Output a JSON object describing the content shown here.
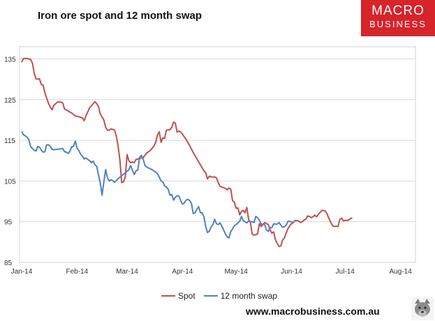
{
  "header": {
    "title": "Iron ore spot and 12 month swap",
    "logo_top": "MACRO",
    "logo_bottom": "BUSINESS"
  },
  "footer": {
    "website": "www.macrobusiness.com.au"
  },
  "colors": {
    "spot": "#c0504d",
    "swap": "#4f81bd",
    "brand_red": "#d7232a",
    "grid": "#d9d9d9"
  },
  "chart_data": {
    "type": "line",
    "title": "Iron ore spot and 12 month swap",
    "xlabel": "",
    "ylabel": "",
    "ylim": [
      85,
      138
    ],
    "yticks": [
      85,
      95,
      105,
      115,
      125,
      135
    ],
    "xlim": [
      0,
      218
    ],
    "xticks": [
      {
        "label": "Jan-14",
        "x": 0
      },
      {
        "label": "Feb-14",
        "x": 31
      },
      {
        "label": "Mar-14",
        "x": 59
      },
      {
        "label": "Apr-14",
        "x": 90
      },
      {
        "label": "May-14",
        "x": 120
      },
      {
        "label": "Jun-14",
        "x": 151
      },
      {
        "label": "Jul-14",
        "x": 181
      },
      {
        "label": "Aug-14",
        "x": 212
      }
    ],
    "legend": "bottom",
    "series": [
      {
        "name": "Spot",
        "color": "#c0504d",
        "points": [
          [
            0,
            134.2
          ],
          [
            1,
            135.1
          ],
          [
            3,
            135.1
          ],
          [
            5,
            134.9
          ],
          [
            6,
            134.0
          ],
          [
            7,
            131.6
          ],
          [
            8,
            130.1
          ],
          [
            10,
            130.1
          ],
          [
            11,
            128.7
          ],
          [
            12,
            128.6
          ],
          [
            13,
            126.7
          ],
          [
            15,
            124.1
          ],
          [
            16,
            123.2
          ],
          [
            17,
            122.5
          ],
          [
            18,
            123.6
          ],
          [
            20,
            124.4
          ],
          [
            22,
            124.4
          ],
          [
            23,
            124.2
          ],
          [
            24,
            122.7
          ],
          [
            26,
            122.2
          ],
          [
            28,
            121.7
          ],
          [
            30,
            121.0
          ],
          [
            32,
            120.8
          ],
          [
            34,
            120.5
          ],
          [
            35,
            119.8
          ],
          [
            36,
            121.0
          ],
          [
            38,
            123.0
          ],
          [
            40,
            124.0
          ],
          [
            41,
            124.5
          ],
          [
            42,
            124.0
          ],
          [
            43,
            123.3
          ],
          [
            44,
            121.5
          ],
          [
            46,
            120.0
          ],
          [
            47,
            118.2
          ],
          [
            48,
            117.5
          ],
          [
            49,
            117.5
          ],
          [
            50,
            117.8
          ],
          [
            51,
            117.7
          ],
          [
            52,
            117.5
          ],
          [
            53,
            116.0
          ],
          [
            54,
            113.5
          ],
          [
            55,
            110.0
          ],
          [
            56,
            104.6
          ],
          [
            57,
            104.8
          ],
          [
            58,
            106.0
          ],
          [
            59,
            111.5
          ],
          [
            60,
            110.0
          ],
          [
            61,
            109.5
          ],
          [
            62,
            109.7
          ],
          [
            63,
            109.5
          ],
          [
            64,
            110.3
          ],
          [
            66,
            110.5
          ],
          [
            68,
            110.8
          ],
          [
            70,
            111.9
          ],
          [
            72,
            112.5
          ],
          [
            74,
            113.6
          ],
          [
            75,
            114.5
          ],
          [
            76,
            116.3
          ],
          [
            77,
            117.1
          ],
          [
            78,
            114.5
          ],
          [
            79,
            115.6
          ],
          [
            80,
            115.5
          ],
          [
            81,
            117.5
          ],
          [
            83,
            117.6
          ],
          [
            84,
            118.2
          ],
          [
            85,
            119.5
          ],
          [
            86,
            119.2
          ],
          [
            87,
            117.0
          ],
          [
            88,
            117.3
          ],
          [
            89,
            117.0
          ],
          [
            90,
            116.5
          ],
          [
            92,
            115.2
          ],
          [
            94,
            113.7
          ],
          [
            96,
            112.0
          ],
          [
            98,
            110.5
          ],
          [
            100,
            109.0
          ],
          [
            102,
            107.5
          ],
          [
            103,
            107.0
          ],
          [
            104,
            105.5
          ],
          [
            105,
            106.2
          ],
          [
            106,
            106.0
          ],
          [
            108,
            106.0
          ],
          [
            109,
            105.8
          ],
          [
            110,
            104.6
          ],
          [
            111,
            103.7
          ],
          [
            112,
            103.5
          ],
          [
            114,
            103.2
          ],
          [
            115,
            102.8
          ],
          [
            116,
            103.3
          ],
          [
            117,
            103.0
          ],
          [
            118,
            100.2
          ],
          [
            119,
            99.8
          ],
          [
            120,
            98.3
          ],
          [
            121,
            98.4
          ],
          [
            122,
            96.7
          ],
          [
            123,
            97.5
          ],
          [
            124,
            97.8
          ],
          [
            125,
            97.2
          ],
          [
            126,
            98.5
          ],
          [
            127,
            95.5
          ],
          [
            128,
            94.8
          ],
          [
            129,
            92.0
          ],
          [
            130,
            91.7
          ],
          [
            131,
            91.8
          ],
          [
            132,
            92.0
          ],
          [
            133,
            94.5
          ],
          [
            134,
            93.8
          ],
          [
            136,
            94.8
          ],
          [
            138,
            94.3
          ],
          [
            139,
            93.0
          ],
          [
            140,
            92.2
          ],
          [
            141,
            92.5
          ],
          [
            142,
            90.5
          ],
          [
            143,
            89.7
          ],
          [
            144,
            88.9
          ],
          [
            145,
            89.0
          ],
          [
            146,
            90.5
          ],
          [
            147,
            91.0
          ],
          [
            148,
            92.2
          ],
          [
            149,
            93.3
          ],
          [
            150,
            94.0
          ],
          [
            151,
            94.5
          ],
          [
            152,
            94.8
          ],
          [
            153,
            95.3
          ],
          [
            155,
            95.2
          ],
          [
            156,
            94.8
          ],
          [
            157,
            95.0
          ],
          [
            158,
            95.4
          ],
          [
            159,
            95.6
          ],
          [
            160,
            96.4
          ],
          [
            161,
            96.3
          ],
          [
            162,
            96.0
          ],
          [
            163,
            96.2
          ],
          [
            164,
            96.6
          ],
          [
            165,
            96.2
          ],
          [
            166,
            96.8
          ],
          [
            167,
            97.3
          ],
          [
            168,
            97.8
          ],
          [
            170,
            97.6
          ],
          [
            171,
            96.8
          ],
          [
            172,
            95.7
          ],
          [
            173,
            94.8
          ],
          [
            174,
            94.0
          ],
          [
            175,
            93.8
          ],
          [
            176,
            93.9
          ],
          [
            177,
            93.8
          ],
          [
            178,
            95.5
          ],
          [
            179,
            95.9
          ],
          [
            180,
            95.2
          ],
          [
            181,
            95.3
          ],
          [
            182,
            95.3
          ],
          [
            183,
            95.4
          ],
          [
            184,
            95.8
          ],
          [
            185,
            95.9
          ]
        ]
      },
      {
        "name": "12 month swap",
        "color": "#4f81bd",
        "points": [
          [
            0,
            117.2
          ],
          [
            1,
            116.4
          ],
          [
            3,
            115.8
          ],
          [
            4,
            115.2
          ],
          [
            5,
            113.5
          ],
          [
            6,
            113.0
          ],
          [
            7,
            112.6
          ],
          [
            8,
            112.4
          ],
          [
            9,
            113.5
          ],
          [
            10,
            113.3
          ],
          [
            11,
            112.6
          ],
          [
            12,
            112.1
          ],
          [
            13,
            112.2
          ],
          [
            14,
            113.9
          ],
          [
            15,
            113.9
          ],
          [
            16,
            113.5
          ],
          [
            17,
            112.8
          ],
          [
            18,
            112.7
          ],
          [
            20,
            112.8
          ],
          [
            22,
            112.9
          ],
          [
            23,
            113.0
          ],
          [
            24,
            112.2
          ],
          [
            25,
            112.1
          ],
          [
            26,
            111.8
          ],
          [
            27,
            112.3
          ],
          [
            28,
            113.4
          ],
          [
            29,
            113.5
          ],
          [
            30,
            114.8
          ],
          [
            31,
            113.1
          ],
          [
            32,
            112.5
          ],
          [
            33,
            111.6
          ],
          [
            34,
            111.1
          ],
          [
            35,
            110.4
          ],
          [
            36,
            110.7
          ],
          [
            37,
            110.3
          ],
          [
            38,
            110.0
          ],
          [
            39,
            109.5
          ],
          [
            40,
            109.9
          ],
          [
            41,
            109.0
          ],
          [
            42,
            108.6
          ],
          [
            43,
            106.5
          ],
          [
            44,
            104.5
          ],
          [
            45,
            101.5
          ],
          [
            46,
            104.8
          ],
          [
            47,
            107.8
          ],
          [
            48,
            105.8
          ],
          [
            49,
            105.0
          ],
          [
            50,
            105.3
          ],
          [
            51,
            105.1
          ],
          [
            52,
            104.7
          ],
          [
            53,
            105.1
          ],
          [
            54,
            105.6
          ],
          [
            56,
            106.3
          ],
          [
            58,
            107.0
          ],
          [
            60,
            107.8
          ],
          [
            61,
            108.8
          ],
          [
            62,
            107.6
          ],
          [
            63,
            106.6
          ],
          [
            64,
            107.5
          ],
          [
            65,
            107.7
          ],
          [
            66,
            110.8
          ],
          [
            67,
            111.3
          ],
          [
            68,
            110.4
          ],
          [
            69,
            108.8
          ],
          [
            70,
            108.4
          ],
          [
            72,
            108.0
          ],
          [
            74,
            107.5
          ],
          [
            76,
            106.8
          ],
          [
            77,
            106.0
          ],
          [
            78,
            105.0
          ],
          [
            79,
            104.8
          ],
          [
            80,
            103.8
          ],
          [
            81,
            103.5
          ],
          [
            82,
            103.0
          ],
          [
            83,
            101.5
          ],
          [
            84,
            101.7
          ],
          [
            85,
            100.3
          ],
          [
            86,
            101.0
          ],
          [
            87,
            101.4
          ],
          [
            88,
            101.3
          ],
          [
            89,
            100.2
          ],
          [
            90,
            99.3
          ],
          [
            91,
            99.6
          ],
          [
            92,
            100.3
          ],
          [
            93,
            100.5
          ],
          [
            94,
            100.2
          ],
          [
            95,
            99.5
          ],
          [
            96,
            97.0
          ],
          [
            97,
            97.2
          ],
          [
            98,
            98.0
          ],
          [
            99,
            98.7
          ],
          [
            100,
            97.2
          ],
          [
            101,
            97.2
          ],
          [
            102,
            96.2
          ],
          [
            103,
            93.8
          ],
          [
            104,
            92.3
          ],
          [
            105,
            92.7
          ],
          [
            106,
            93.7
          ],
          [
            107,
            94.3
          ],
          [
            108,
            95.6
          ],
          [
            109,
            94.5
          ],
          [
            110,
            94.3
          ],
          [
            111,
            94.7
          ],
          [
            112,
            93.9
          ],
          [
            113,
            93.0
          ],
          [
            114,
            92.0
          ],
          [
            115,
            91.3
          ],
          [
            116,
            91.0
          ],
          [
            117,
            92.6
          ],
          [
            118,
            93.2
          ],
          [
            119,
            94.0
          ],
          [
            120,
            94.3
          ],
          [
            121,
            94.7
          ],
          [
            122,
            95.1
          ],
          [
            123,
            96.3
          ],
          [
            124,
            95.2
          ],
          [
            125,
            95.0
          ],
          [
            126,
            94.7
          ],
          [
            127,
            95.2
          ],
          [
            128,
            95.0
          ],
          [
            129,
            95.0
          ],
          [
            130,
            94.8
          ],
          [
            131,
            96.3
          ],
          [
            132,
            96.0
          ],
          [
            133,
            95.4
          ],
          [
            134,
            94.4
          ],
          [
            135,
            94.4
          ],
          [
            136,
            94.3
          ],
          [
            137,
            93.0
          ],
          [
            138,
            92.6
          ],
          [
            139,
            93.5
          ],
          [
            140,
            93.5
          ],
          [
            141,
            94.5
          ],
          [
            142,
            94.4
          ],
          [
            143,
            94.4
          ],
          [
            144,
            94.8
          ],
          [
            145,
            94.2
          ],
          [
            146,
            93.6
          ],
          [
            147,
            93.8
          ],
          [
            148,
            94.1
          ],
          [
            149,
            95.1
          ],
          [
            150,
            95.1
          ],
          [
            151,
            95.0
          ],
          [
            152,
            94.6
          ]
        ]
      }
    ]
  }
}
